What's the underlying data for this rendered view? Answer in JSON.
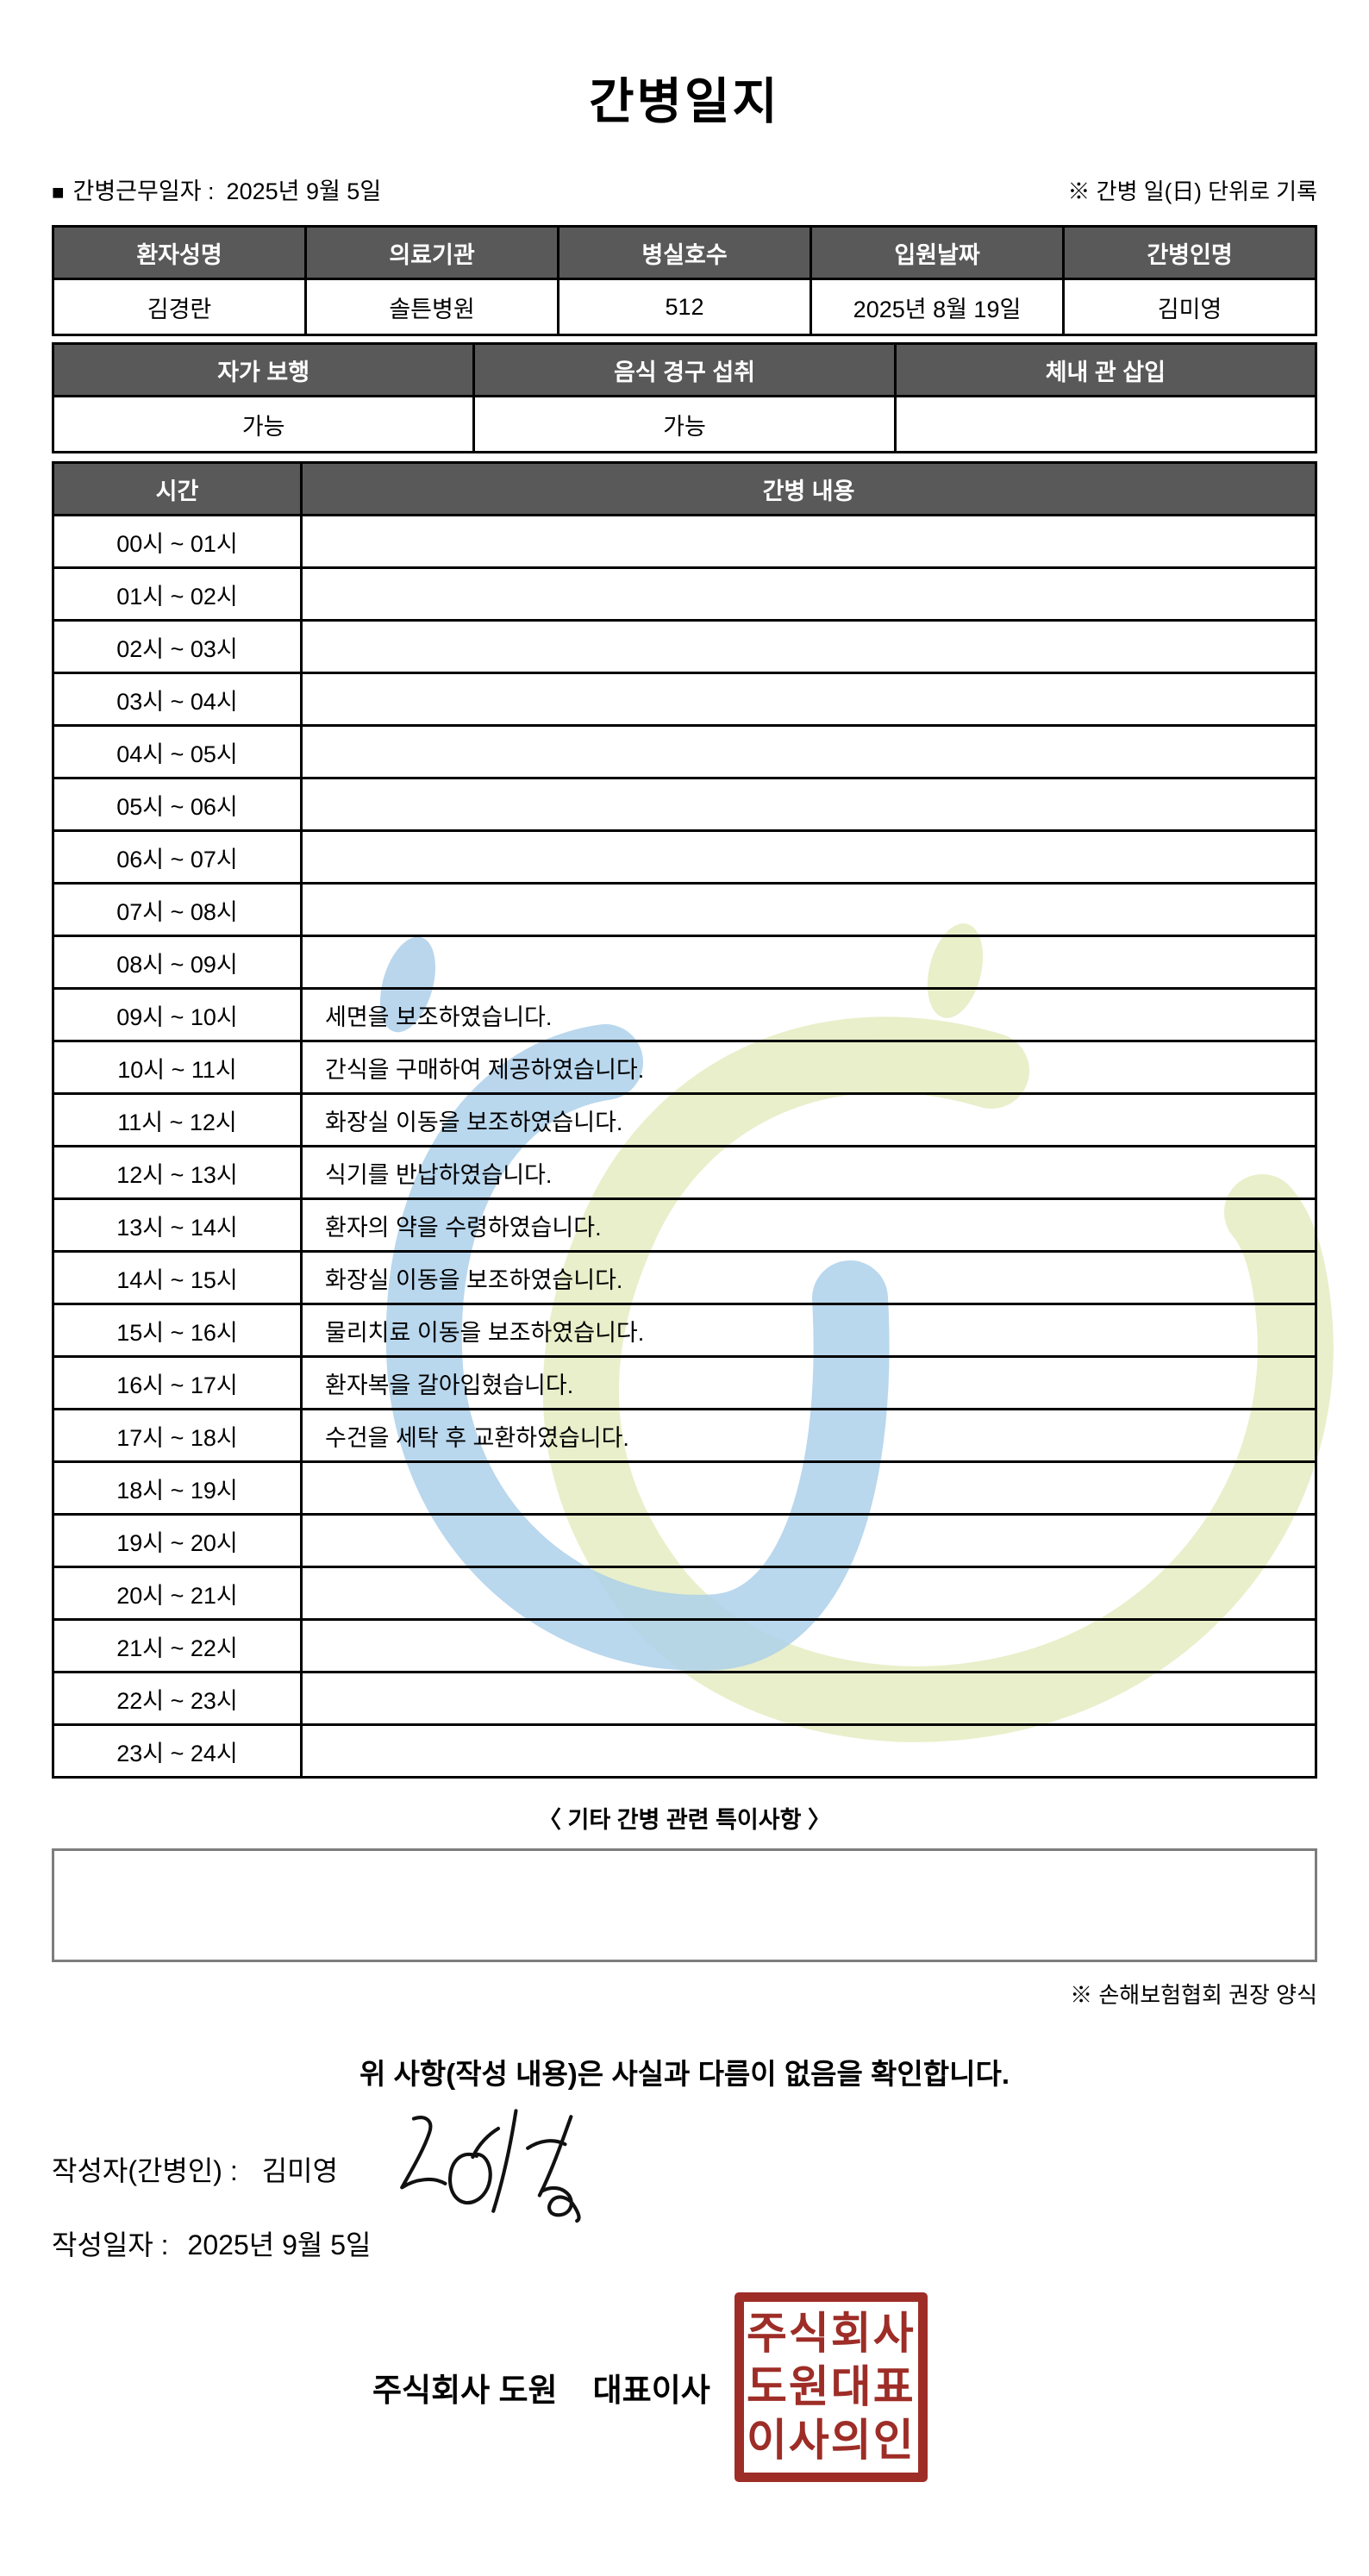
{
  "header": {
    "title": "간병일지",
    "work_date_bullet": "■",
    "work_date_label": "간병근무일자  :",
    "work_date_value": "2025년 9월 5일",
    "unit_note": "※ 간병 일(日) 단위로 기록"
  },
  "patient_table": {
    "headers": [
      "환자성명",
      "의료기관",
      "병실호수",
      "입원날짜",
      "간병인명"
    ],
    "values": [
      "김경란",
      "솔튼병원",
      "512",
      "2025년 8월 19일",
      "김미영"
    ]
  },
  "status_table": {
    "headers": [
      "자가 보행",
      "음식 경구 섭취",
      "체내 관 삽입"
    ],
    "values": [
      "가능",
      "가능",
      ""
    ]
  },
  "schedule_table": {
    "time_header": "시간",
    "content_header": "간병 내용",
    "rows": [
      {
        "time": "00시 ~ 01시",
        "content": ""
      },
      {
        "time": "01시 ~ 02시",
        "content": ""
      },
      {
        "time": "02시 ~ 03시",
        "content": ""
      },
      {
        "time": "03시 ~ 04시",
        "content": ""
      },
      {
        "time": "04시 ~ 05시",
        "content": ""
      },
      {
        "time": "05시 ~ 06시",
        "content": ""
      },
      {
        "time": "06시 ~ 07시",
        "content": ""
      },
      {
        "time": "07시 ~ 08시",
        "content": ""
      },
      {
        "time": "08시 ~ 09시",
        "content": ""
      },
      {
        "time": "09시 ~ 10시",
        "content": "세면을 보조하였습니다."
      },
      {
        "time": "10시 ~ 11시",
        "content": "간식을 구매하여 제공하였습니다."
      },
      {
        "time": "11시 ~ 12시",
        "content": "화장실 이동을 보조하였습니다."
      },
      {
        "time": "12시 ~ 13시",
        "content": "식기를 반납하였습니다."
      },
      {
        "time": "13시 ~ 14시",
        "content": "환자의 약을 수령하였습니다."
      },
      {
        "time": "14시 ~ 15시",
        "content": "화장실 이동을 보조하였습니다."
      },
      {
        "time": "15시 ~ 16시",
        "content": "물리치료 이동을 보조하였습니다."
      },
      {
        "time": "16시 ~ 17시",
        "content": "환자복을 갈아입혔습니다."
      },
      {
        "time": "17시 ~ 18시",
        "content": "수건을 세탁 후 교환하였습니다."
      },
      {
        "time": "18시 ~ 19시",
        "content": ""
      },
      {
        "time": "19시 ~ 20시",
        "content": ""
      },
      {
        "time": "20시 ~ 21시",
        "content": ""
      },
      {
        "time": "21시 ~ 22시",
        "content": ""
      },
      {
        "time": "22시 ~ 23시",
        "content": ""
      },
      {
        "time": "23시 ~ 24시",
        "content": ""
      }
    ]
  },
  "notes": {
    "title": "〈 기타 간병 관련 특이사항 〉",
    "content": "",
    "form_note": "※ 손해보험협회 권장 양식"
  },
  "footer": {
    "confirmation": "위 사항(작성 내용)은 사실과 다름이 없음을 확인합니다.",
    "writer_label": "작성자(간병인) :",
    "writer_name": "김미영",
    "date_label": "작성일자 :",
    "date_value": "2025년 9월 5일",
    "company_line": "주식회사 도원    대표이사",
    "stamp_lines": [
      "주식회사",
      "도원대표",
      "이사의인"
    ]
  },
  "colors": {
    "table_header_bg": "#595959",
    "stamp_red": "#9E2D27",
    "watermark_blue": "#ADD0EA",
    "watermark_green": "#E4ECBE"
  }
}
